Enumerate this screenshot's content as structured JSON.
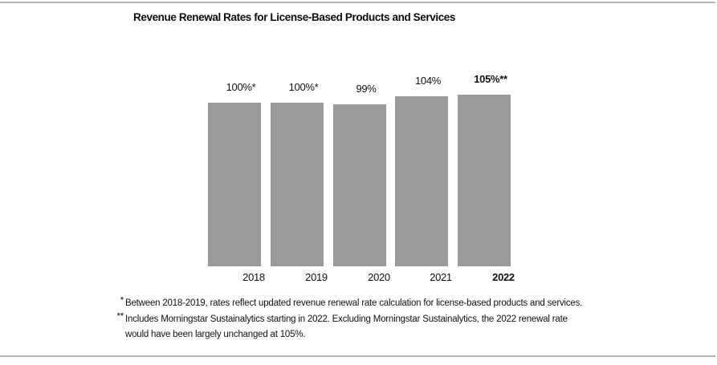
{
  "page": {
    "background": "#ffffff",
    "rule_color": "#b3b3b3"
  },
  "title": "Revenue Renewal Rates for License-Based Products and Services",
  "chart_data": {
    "type": "bar",
    "title": "Revenue Renewal Rates for License-Based Products and Services",
    "categories": [
      "2018",
      "2019",
      "2020",
      "2021",
      "2022"
    ],
    "values": [
      100,
      100,
      99,
      104,
      105
    ],
    "value_labels": [
      "100%*",
      "100%*",
      "99%",
      "104%",
      "105%**"
    ],
    "unit": "%",
    "ylim": [
      0,
      110
    ],
    "axes_visible": false,
    "grid": false,
    "legend": false,
    "bar_color": "#9a9a9a",
    "bold_category_index": 4
  },
  "footnotes": [
    {
      "marker": "*",
      "lines": [
        "Between 2018-2019, rates reflect updated revenue renewal rate calculation for license-based products and services."
      ]
    },
    {
      "marker": "**",
      "lines": [
        "Includes Morningstar Sustainalytics starting in 2022. Excluding Morningstar Sustainalytics, the 2022 renewal rate",
        "would have been largely unchanged at 105%."
      ]
    }
  ]
}
